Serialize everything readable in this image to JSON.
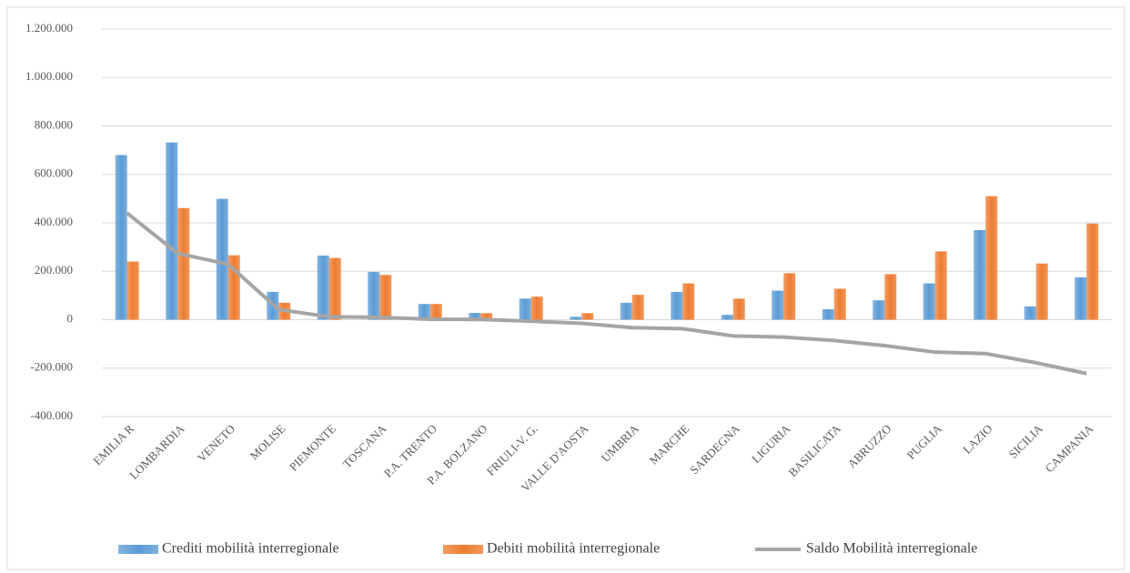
{
  "chart_data": {
    "type": "bar_line",
    "categories": [
      "EMILIA R",
      "LOMBARDIA",
      "VENETO",
      "MOLISE",
      "PIEMONTE",
      "TOSCANA",
      "P.A. TRENTO",
      "P.A. BOLZANO",
      "FRIULI-V. G.",
      "VALLE D'AOSTA",
      "UMBRIA",
      "MARCHE",
      "SARDEGNA",
      "LIGURIA",
      "BASILICATA",
      "ABRUZZO",
      "PUGLIA",
      "LAZIO",
      "SICILIA",
      "CAMPANIA"
    ],
    "series": [
      {
        "name": "Crediti mobilità interregionale",
        "type": "bar",
        "color": "#5b9bd5",
        "values": [
          680000,
          732000,
          499000,
          115000,
          265000,
          197000,
          65000,
          28000,
          87000,
          12000,
          70000,
          115000,
          20000,
          120000,
          43000,
          80000,
          150000,
          370000,
          55000,
          175000
        ]
      },
      {
        "name": "Debiti mobilità interregionale",
        "type": "bar",
        "color": "#ed7d31",
        "values": [
          240000,
          461000,
          266000,
          70000,
          255000,
          185000,
          65000,
          27000,
          95000,
          27000,
          103000,
          150000,
          87000,
          192000,
          128000,
          188000,
          282000,
          510000,
          232000,
          397000
        ]
      },
      {
        "name": "Saldo Mobilità interregionale",
        "type": "line",
        "color": "#a5a5a5",
        "values": [
          440000,
          274000,
          229000,
          42000,
          12000,
          10000,
          2000,
          1000,
          -6000,
          -15000,
          -33000,
          -37000,
          -67000,
          -72000,
          -86000,
          -107000,
          -134000,
          -140000,
          -178000,
          -222000
        ]
      }
    ],
    "ylim": [
      -400000,
      1200000
    ],
    "yticks": [
      {
        "value": -400000,
        "label": "-400.000"
      },
      {
        "value": -200000,
        "label": "-200.000"
      },
      0,
      {
        "value": 200000,
        "label": "200.000"
      },
      {
        "value": 400000,
        "label": "400.000"
      },
      {
        "value": 600000,
        "label": "600.000"
      },
      {
        "value": 800000,
        "label": "800.000"
      },
      {
        "value": 1000000,
        "label": "1.000.000"
      },
      {
        "value": 1200000,
        "label": "1.200.000"
      }
    ],
    "grid": true,
    "legend": "bottom"
  }
}
